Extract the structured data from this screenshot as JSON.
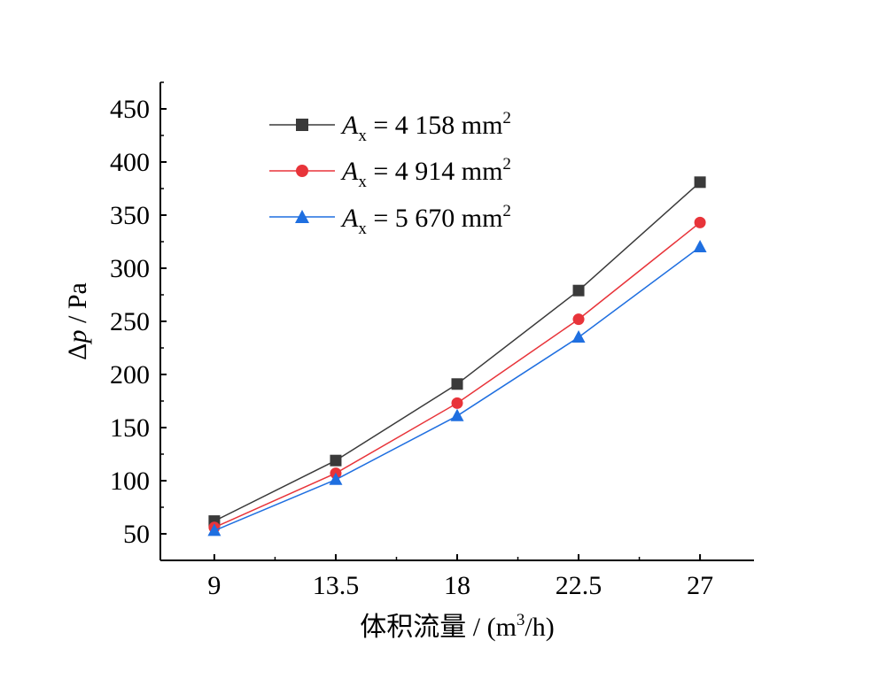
{
  "chart_data": {
    "type": "line",
    "x": [
      9,
      13.5,
      18,
      22.5,
      27
    ],
    "x_tick_labels": [
      "9",
      "13.5",
      "18",
      "22.5",
      "27"
    ],
    "xlabel": "体积流量 / (m3/h)",
    "xlabel_parts": {
      "main": "体积流量 / (m",
      "sup": "3",
      "tail": "/h)"
    },
    "ylabel": "Δp / Pa",
    "ylabel_parts": {
      "delta": "Δ",
      "var": "p",
      "tail": " / Pa"
    },
    "xlim": [
      7,
      29
    ],
    "ylim": [
      25,
      475
    ],
    "y_ticks": [
      50,
      100,
      150,
      200,
      250,
      300,
      350,
      400,
      450
    ],
    "y_tick_labels": [
      "50",
      "100",
      "150",
      "200",
      "250",
      "300",
      "350",
      "400",
      "450"
    ],
    "legend_position": "top-left",
    "series": [
      {
        "name": "Ax = 4 158 mm2",
        "name_parts": {
          "var": "A",
          "sub": "x",
          "text": " = 4 158 mm",
          "sup": "2"
        },
        "values": [
          62,
          119,
          191,
          279,
          381
        ],
        "color": "#3a3a3a",
        "marker": "square"
      },
      {
        "name": "Ax = 4 914 mm2",
        "name_parts": {
          "var": "A",
          "sub": "x",
          "text": " = 4 914 mm",
          "sup": "2"
        },
        "values": [
          56,
          107,
          173,
          252,
          343
        ],
        "color": "#e8343a",
        "marker": "circle"
      },
      {
        "name": "Ax = 5 670 mm2",
        "name_parts": {
          "var": "A",
          "sub": "x",
          "text": " = 5 670 mm",
          "sup": "2"
        },
        "values": [
          53,
          101,
          161,
          235,
          320
        ],
        "color": "#1f6fe0",
        "marker": "triangle"
      }
    ]
  }
}
